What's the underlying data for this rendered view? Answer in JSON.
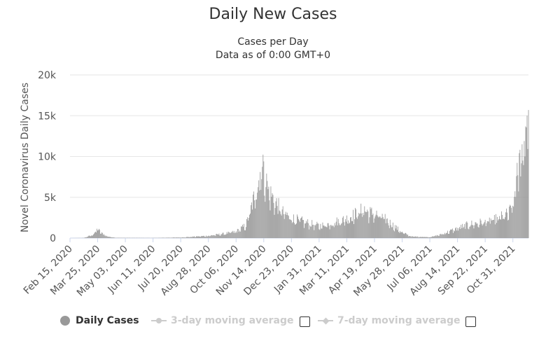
{
  "chart_data": {
    "type": "bar",
    "title": "Daily New Cases",
    "subtitle": "Cases per Day",
    "subtitle2": "Data as of 0:00 GMT+0",
    "ylabel": "Novel Coronavirus Daily Cases",
    "ylim": [
      0,
      20000
    ],
    "yticks": [
      "0",
      "5k",
      "10k",
      "15k",
      "20k"
    ],
    "ytick_values": [
      0,
      5000,
      10000,
      15000,
      20000
    ],
    "grid": true,
    "xtick_labels": [
      "Feb 15, 2020",
      "Mar 25, 2020",
      "May 03, 2020",
      "Jun 11, 2020",
      "Jul 20, 2020",
      "Aug 28, 2020",
      "Oct 06, 2020",
      "Nov 14, 2020",
      "Dec 23, 2020",
      "Jan 31, 2021",
      "Mar 11, 2021",
      "Apr 19, 2021",
      "May 28, 2021",
      "Jul 06, 2021",
      "Aug 14, 2021",
      "Sep 22, 2021",
      "Oct 31, 2021"
    ],
    "series": [
      {
        "name": "Daily Cases",
        "color": "#999999",
        "anchors": [
          {
            "date": "2020-02-15",
            "value": 0
          },
          {
            "date": "2020-03-05",
            "value": 20
          },
          {
            "date": "2020-03-18",
            "value": 400
          },
          {
            "date": "2020-03-25",
            "value": 1100
          },
          {
            "date": "2020-03-31",
            "value": 600
          },
          {
            "date": "2020-04-08",
            "value": 200
          },
          {
            "date": "2020-04-20",
            "value": 40
          },
          {
            "date": "2020-06-11",
            "value": 20
          },
          {
            "date": "2020-07-20",
            "value": 80
          },
          {
            "date": "2020-08-28",
            "value": 280
          },
          {
            "date": "2020-09-20",
            "value": 550
          },
          {
            "date": "2020-10-06",
            "value": 800
          },
          {
            "date": "2020-10-20",
            "value": 1600
          },
          {
            "date": "2020-10-30",
            "value": 4500
          },
          {
            "date": "2020-11-08",
            "value": 7500
          },
          {
            "date": "2020-11-14",
            "value": 8500
          },
          {
            "date": "2020-11-20",
            "value": 6000
          },
          {
            "date": "2020-11-30",
            "value": 4500
          },
          {
            "date": "2020-12-10",
            "value": 3200
          },
          {
            "date": "2020-12-23",
            "value": 2500
          },
          {
            "date": "2021-01-10",
            "value": 2000
          },
          {
            "date": "2021-01-31",
            "value": 1500
          },
          {
            "date": "2021-02-15",
            "value": 1800
          },
          {
            "date": "2021-03-11",
            "value": 2400
          },
          {
            "date": "2021-04-01",
            "value": 3400
          },
          {
            "date": "2021-04-19",
            "value": 3000
          },
          {
            "date": "2021-05-05",
            "value": 2300
          },
          {
            "date": "2021-05-28",
            "value": 700
          },
          {
            "date": "2021-06-10",
            "value": 200
          },
          {
            "date": "2021-07-06",
            "value": 120
          },
          {
            "date": "2021-07-20",
            "value": 400
          },
          {
            "date": "2021-08-14",
            "value": 1200
          },
          {
            "date": "2021-08-30",
            "value": 1700
          },
          {
            "date": "2021-09-22",
            "value": 2000
          },
          {
            "date": "2021-10-10",
            "value": 2400
          },
          {
            "date": "2021-10-25",
            "value": 3000
          },
          {
            "date": "2021-10-31",
            "value": 4000
          },
          {
            "date": "2021-11-06",
            "value": 7500
          },
          {
            "date": "2021-11-12",
            "value": 10500
          },
          {
            "date": "2021-11-18",
            "value": 13500
          },
          {
            "date": "2021-11-22",
            "value": 15700
          }
        ],
        "peaks": [
          {
            "date": "2020-11-14",
            "value": 9400
          },
          {
            "date": "2020-11-09",
            "value": 8100
          },
          {
            "date": "2020-11-19",
            "value": 7000
          },
          {
            "date": "2021-04-05",
            "value": 3900
          },
          {
            "date": "2021-11-16",
            "value": 11900
          },
          {
            "date": "2021-11-20",
            "value": 15000
          },
          {
            "date": "2021-11-22",
            "value": 15700
          }
        ]
      }
    ],
    "legend": {
      "placement": "bottom-left",
      "items": [
        {
          "label": "Daily Cases",
          "active": true
        },
        {
          "label": "3-day moving average",
          "active": false
        },
        {
          "label": "7-day moving average",
          "active": false
        }
      ]
    }
  }
}
